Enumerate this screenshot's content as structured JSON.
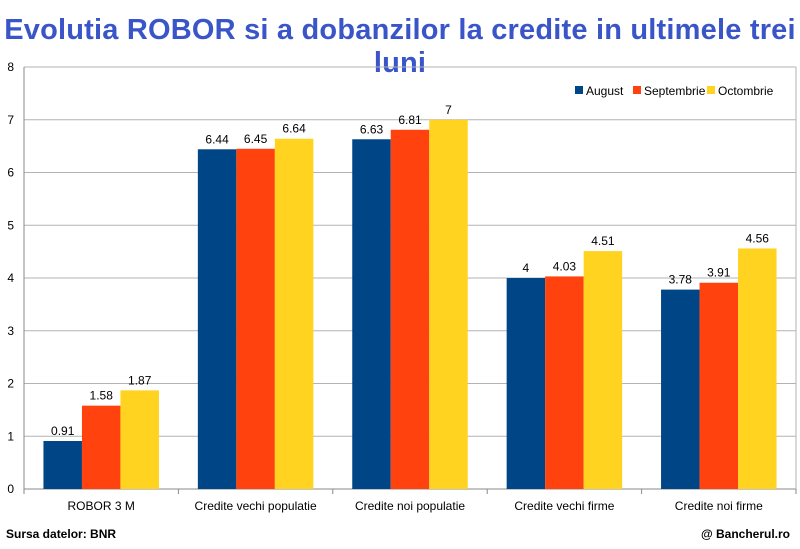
{
  "header": {
    "title": "Evolutia ROBOR si a dobanzilor la credite in ultimele trei luni"
  },
  "footer": {
    "source": "Sursa datelor: BNR",
    "credit": "@ Bancherul.ro"
  },
  "chart_data": {
    "type": "bar",
    "title": "Evolutia ROBOR si a dobanzilor la credite in ultimele trei luni",
    "xlabel": "",
    "ylabel": "",
    "ylim": [
      0,
      8
    ],
    "yticks": [
      0,
      1,
      2,
      3,
      4,
      5,
      6,
      7,
      8
    ],
    "grid": "horizontal",
    "legend_position": "top-right",
    "categories": [
      "ROBOR 3 M",
      "Credite vechi populatie",
      "Credite noi populatie",
      "Credite vechi firme",
      "Credite noi firme"
    ],
    "series": [
      {
        "name": "August",
        "color": "#004586",
        "values": [
          0.91,
          6.44,
          6.63,
          4,
          3.78
        ],
        "labels": [
          "0.91",
          "6.44",
          "6.63",
          "4",
          "3.78"
        ]
      },
      {
        "name": "Septembrie",
        "color": "#ff420e",
        "values": [
          1.58,
          6.45,
          6.81,
          4.03,
          3.91
        ],
        "labels": [
          "1.58",
          "6.45",
          "6.81",
          "4.03",
          "3.91"
        ]
      },
      {
        "name": "Octombrie",
        "color": "#ffd320",
        "values": [
          1.87,
          6.64,
          7,
          4.51,
          4.56
        ],
        "labels": [
          "1.87",
          "6.64",
          "7",
          "4.51",
          "4.56"
        ]
      }
    ]
  }
}
